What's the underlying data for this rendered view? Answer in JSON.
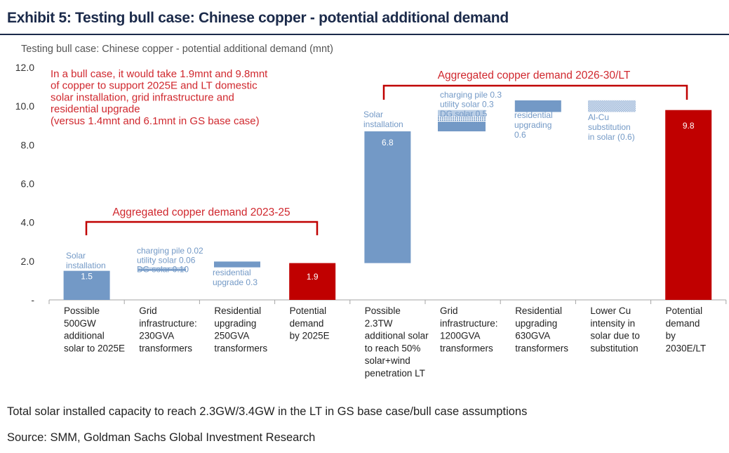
{
  "exhibit_title": "Exhibit 5: Testing bull case: Chinese copper - potential additional demand",
  "footnotes": {
    "note": "Total solar installed capacity to reach 2.3GW/3.4GW in the LT in GS base case/bull case assumptions",
    "source": "Source: SMM, Goldman Sachs Global Investment Research"
  },
  "colors": {
    "base": "#7399c6",
    "total": "#c00000",
    "annotation": "#d0282e",
    "inner_label": "#7399c6"
  },
  "chart_data": {
    "type": "bar",
    "subtype": "waterfall",
    "title": "Testing bull case: Chinese copper - potential additional demand (mnt)",
    "ylim": [
      0,
      12
    ],
    "yticks": [
      "-",
      "2.0",
      "4.0",
      "6.0",
      "8.0",
      "10.0",
      "12.0"
    ],
    "grid": false,
    "categories": [
      [
        "Possible",
        "500GW",
        "additional",
        "solar to 2025E"
      ],
      [
        "Grid",
        "infrastructure:",
        "230GVA",
        "transformers"
      ],
      [
        "Residential",
        "upgrading",
        "250GVA",
        "transformers"
      ],
      [
        "Potential",
        "demand",
        "by 2025E"
      ],
      [
        "Possible",
        "2.3TW",
        "additional solar",
        "to reach 50%",
        "solar+wind",
        "penetration LT"
      ],
      [
        "Grid",
        "infrastructure:",
        "1200GVA",
        "transformers"
      ],
      [
        "Residential",
        "upgrading",
        "630GVA",
        "transformers"
      ],
      [
        "Lower Cu",
        "intensity in",
        "solar due to",
        "substitution"
      ],
      [
        "Potential",
        "demand",
        "by",
        "2030E/LT"
      ]
    ],
    "bars": [
      {
        "segments": [
          {
            "start": 0,
            "value": 1.5,
            "style": "solid"
          }
        ],
        "label": [
          "Solar",
          "installation"
        ],
        "value_label": "1.5"
      },
      {
        "segments": [
          {
            "start": 1.5,
            "value": 0.1,
            "style": "solid"
          },
          {
            "start": 1.6,
            "value": 0.06,
            "style": "dotted"
          },
          {
            "start": 1.66,
            "value": 0.02,
            "style": "light"
          }
        ],
        "label": [
          "charging pile 0.02",
          "utility solar 0.06",
          "DG solar 0.10"
        ]
      },
      {
        "segments": [
          {
            "start": 1.68,
            "value": 0.3,
            "style": "solid"
          }
        ],
        "label": [
          "residential",
          "upgrade  0.3"
        ]
      },
      {
        "segments": [
          {
            "start": 0,
            "value": 1.9,
            "style": "total"
          }
        ],
        "value_label": "1.9"
      },
      {
        "segments": [
          {
            "start": 1.9,
            "value": 6.8,
            "style": "solid"
          }
        ],
        "label": [
          "Solar",
          "installation"
        ],
        "value_label": "6.8"
      },
      {
        "segments": [
          {
            "start": 8.7,
            "value": 0.5,
            "style": "solid"
          },
          {
            "start": 9.2,
            "value": 0.3,
            "style": "dotted"
          },
          {
            "start": 9.5,
            "value": 0.3,
            "style": "light"
          }
        ],
        "label": [
          "charging pile  0.3",
          "utility solar  0.3",
          "DG solar 0.5"
        ]
      },
      {
        "segments": [
          {
            "start": 9.7,
            "value": 0.6,
            "style": "solid"
          }
        ],
        "label": [
          "residential",
          "upgrading",
          "0.6"
        ]
      },
      {
        "segments": [
          {
            "start": 9.7,
            "value": 0.6,
            "style": "hatched"
          }
        ],
        "label": [
          "Al-Cu",
          "substitution",
          "in solar (0.6)"
        ]
      },
      {
        "segments": [
          {
            "start": 0,
            "value": 9.8,
            "style": "total"
          }
        ],
        "value_label": "9.8"
      }
    ],
    "brackets": [
      {
        "label": "Aggregated copper demand 2023-25"
      },
      {
        "label": "Aggregated copper demand 2026-30/LT"
      }
    ],
    "annotation": [
      "In a bull case, it would take 1.9mnt and 9.8mnt",
      "of copper to  support 2025E and LT domestic",
      "solar installation, grid infrastructure and",
      "residential upgrade",
      "(versus 1.4mnt and 6.1mnt in GS base case)"
    ]
  }
}
